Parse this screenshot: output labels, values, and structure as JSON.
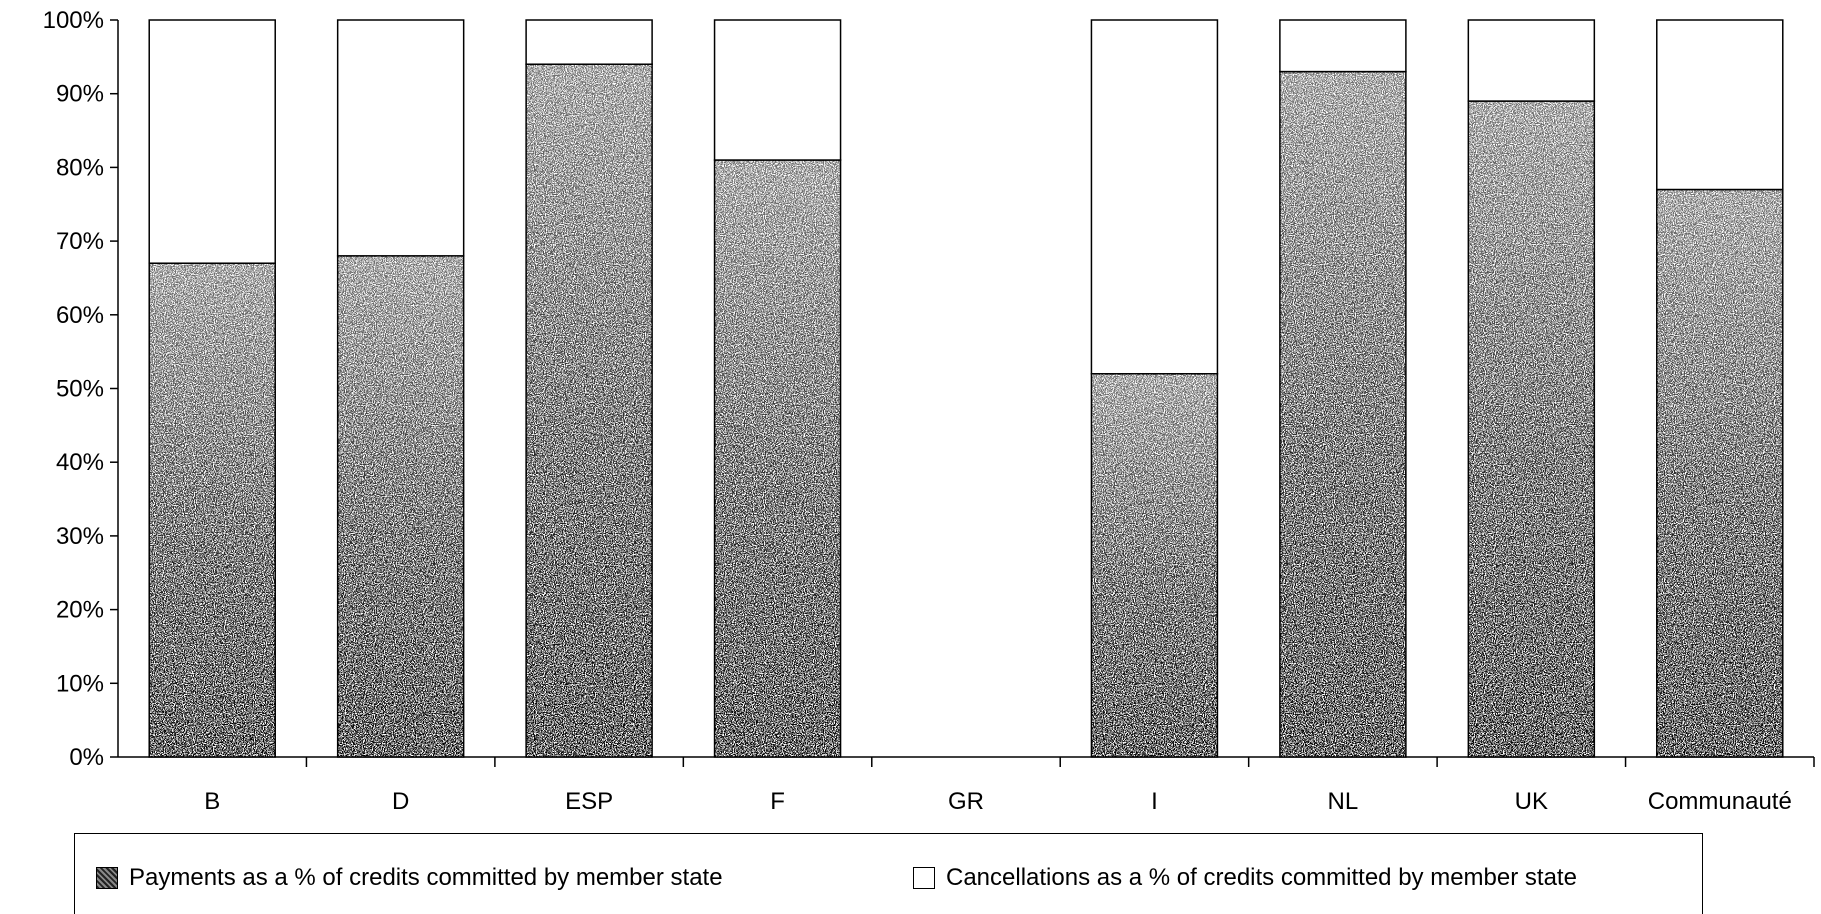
{
  "chart_data": {
    "type": "bar",
    "stacked": true,
    "percent_stacked": true,
    "categories": [
      "B",
      "D",
      "ESP",
      "F",
      "GR",
      "I",
      "NL",
      "UK",
      "Communauté"
    ],
    "series": [
      {
        "name": "Payments as a % of credits committed by member state",
        "values": [
          67,
          68,
          94,
          81,
          null,
          52,
          93,
          89,
          77
        ],
        "color": "#333333",
        "fill": "stippled"
      },
      {
        "name": "Cancellations as a % of credits committed by member state",
        "values": [
          33,
          32,
          6,
          19,
          null,
          48,
          7,
          11,
          23
        ],
        "color": "#ffffff",
        "fill": "blank"
      }
    ],
    "yticks": [
      "0%",
      "10%",
      "20%",
      "30%",
      "40%",
      "50%",
      "60%",
      "70%",
      "80%",
      "90%",
      "100%"
    ],
    "ylim": [
      0,
      100
    ],
    "grid": false,
    "legend_position": "bottom"
  },
  "legend": {
    "payments_label": "Payments as a % of credits committed by member state",
    "cancellations_label": "Cancellations as a % of credits committed by member state"
  }
}
